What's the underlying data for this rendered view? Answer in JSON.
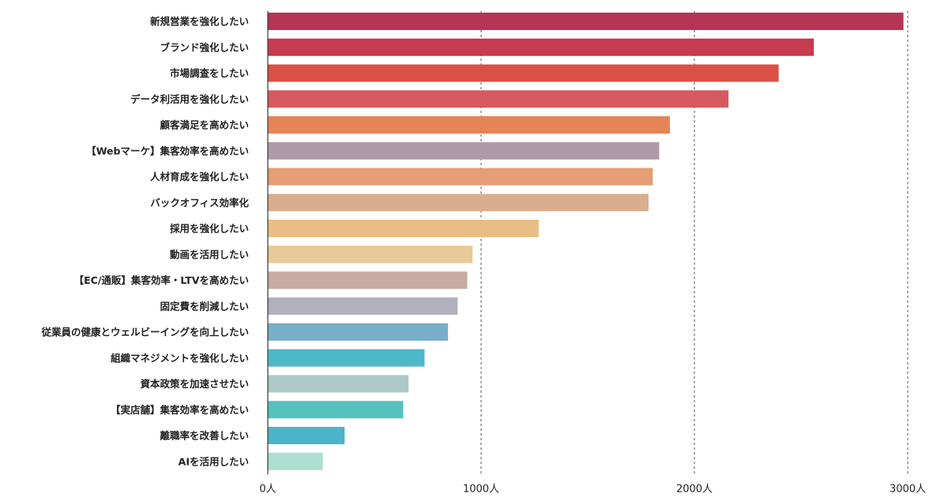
{
  "chart_data": {
    "type": "bar",
    "orientation": "horizontal",
    "categories": [
      "新規営業を強化したい",
      "ブランド強化したい",
      "市場調査をしたい",
      "データ利活用を強化したい",
      "顧客満足を高めたい",
      "【Webマーケ】集客効率を高めたい",
      "人材育成を強化したい",
      "バックオフィス効率化",
      "採用を強化したい",
      "動画を活用したい",
      "【EC/通販】集客効率・LTVを高めたい",
      "固定費を削減したい",
      "従業員の健康とウェルビーイングを向上したい",
      "組織マネジメントを強化したい",
      "資本政策を加速させたい",
      "【実店舗】集客効率を高めたい",
      "離職率を改善したい",
      "AIを活用したい"
    ],
    "values": [
      2980,
      2560,
      2395,
      2160,
      1885,
      1835,
      1805,
      1785,
      1270,
      960,
      935,
      890,
      845,
      735,
      660,
      635,
      360,
      258
    ],
    "colors": [
      "#b83454",
      "#c83b50",
      "#db5145",
      "#d65a60",
      "#e58557",
      "#b19aa8",
      "#e59e75",
      "#d9ae8f",
      "#e7bf85",
      "#e7ca96",
      "#c6aba0",
      "#b1b0bc",
      "#77aec8",
      "#4cb9c8",
      "#acc9c7",
      "#55c2bd",
      "#4ab5c8",
      "#addfd0"
    ],
    "x_ticks": [
      0,
      1000,
      2000,
      3000
    ],
    "x_tick_labels": [
      "0人",
      "1000人",
      "2000人",
      "3000人"
    ],
    "xlim": [
      0,
      3000
    ],
    "grid": "vertical-dashed",
    "title": "",
    "xlabel": "",
    "ylabel": ""
  }
}
